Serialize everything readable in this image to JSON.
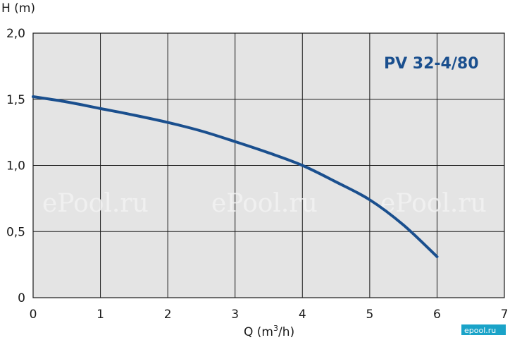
{
  "chart_data": {
    "type": "line",
    "title": "PV 32-4/80",
    "xlabel": "Q (m3/h)",
    "xlabel_parts": {
      "main": "Q (m",
      "sup": "3",
      "tail": "/h)"
    },
    "ylabel": "H (m)",
    "xlim": [
      0,
      7
    ],
    "ylim": [
      0,
      2.0
    ],
    "x_ticks": [
      0,
      1,
      2,
      3,
      4,
      5,
      6,
      7
    ],
    "x_tick_labels": [
      "0",
      "1",
      "2",
      "3",
      "4",
      "5",
      "6",
      "7"
    ],
    "y_ticks": [
      0,
      0.5,
      1.0,
      1.5,
      2.0
    ],
    "y_tick_labels": [
      "0",
      "0,5",
      "1,0",
      "1,5",
      "2,0"
    ],
    "grid": true,
    "series": [
      {
        "x": [
          0,
          0.5,
          1,
          1.5,
          2,
          2.5,
          3,
          3.5,
          4,
          4.5,
          5,
          5.5,
          6
        ],
        "y": [
          1.52,
          1.48,
          1.43,
          1.38,
          1.325,
          1.26,
          1.18,
          1.095,
          1.0,
          0.875,
          0.74,
          0.55,
          0.31
        ],
        "color": "#1a4f8e"
      }
    ]
  },
  "watermarks": [
    "ePool.ru",
    "ePool.ru",
    "ePool.ru",
    "epool.ru"
  ],
  "colors": {
    "plot_background": "#e4e4e4",
    "grid": "#1a1a1a",
    "curve": "#1a4f8e",
    "title": "#1a4f8e"
  }
}
